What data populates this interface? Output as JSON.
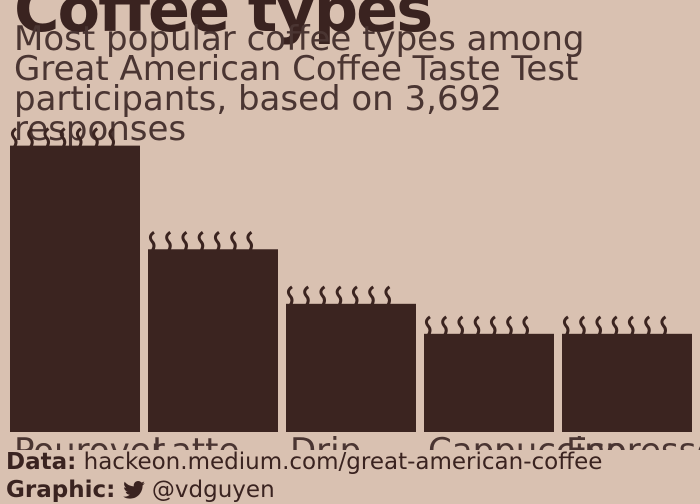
{
  "header": {
    "title": "Coffee types",
    "subtitle_lines": [
      "Most popular coffee types among",
      "Great American Coffee Taste Test",
      "participants, based on 3,692",
      "responses"
    ]
  },
  "footer": {
    "data_label": "Data:",
    "data_source": "hackeon.medium.com/great-american-coffee",
    "graphic_label": "Graphic:",
    "graphic_handle": "@vdguyen",
    "twitter_icon": "twitter-icon"
  },
  "colors": {
    "background": "#d9c1b1",
    "bar": "#3b2420",
    "text": "#3a2320"
  },
  "chart_data": {
    "type": "bar",
    "title": "Coffee types",
    "categories": [
      "Pourover",
      "Latte",
      "Drip",
      "Cappuccino",
      "Espresso"
    ],
    "values": [
      1050,
      670,
      470,
      360,
      360
    ],
    "ylim": [
      0,
      1100
    ],
    "grid": false,
    "xlabel": "",
    "ylabel": ""
  }
}
